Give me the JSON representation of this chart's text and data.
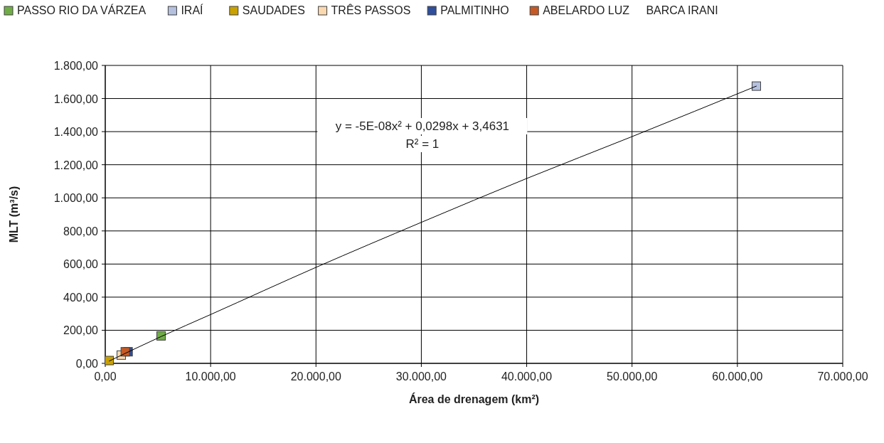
{
  "chart_data": {
    "type": "scatter",
    "xlabel": "Área de drenagem (km²)",
    "ylabel": "MLT (m³/s)",
    "xlim": [
      0,
      70000
    ],
    "ylim": [
      0,
      1800
    ],
    "xticks": [
      {
        "value": 0,
        "label": "0,00"
      },
      {
        "value": 10000,
        "label": "10.000,00"
      },
      {
        "value": 20000,
        "label": "20.000,00"
      },
      {
        "value": 30000,
        "label": "30.000,00"
      },
      {
        "value": 40000,
        "label": "40.000,00"
      },
      {
        "value": 50000,
        "label": "50.000,00"
      },
      {
        "value": 60000,
        "label": "60.000,00"
      },
      {
        "value": 70000,
        "label": "70.000,00"
      }
    ],
    "yticks": [
      {
        "value": 0,
        "label": "0,00"
      },
      {
        "value": 200,
        "label": "200,00"
      },
      {
        "value": 400,
        "label": "400,00"
      },
      {
        "value": 600,
        "label": "600,00"
      },
      {
        "value": 800,
        "label": "800,00"
      },
      {
        "value": 1000,
        "label": "1.000,00"
      },
      {
        "value": 1200,
        "label": "1.200,00"
      },
      {
        "value": 1400,
        "label": "1.400,00"
      },
      {
        "value": 1600,
        "label": "1.600,00"
      },
      {
        "value": 1800,
        "label": "1.800,00"
      }
    ],
    "grid": true,
    "legend": "top",
    "marker": "square",
    "series": [
      {
        "type": "line",
        "color": "#000000",
        "marker": "none",
        "x": [
          376,
          5300,
          10000,
          20000,
          30000,
          40000,
          50000,
          61800
        ],
        "values": [
          14,
          162,
          295,
          580,
          852,
          1117,
          1370,
          1675
        ]
      },
      {
        "name": "PASSO RIO DA VÁRZEA",
        "color": "#70ad47",
        "x": [
          5300
        ],
        "values": [
          166
        ]
      },
      {
        "name": "IRAÍ",
        "color": "#b4c0de",
        "x": [
          61800
        ],
        "values": [
          1675
        ]
      },
      {
        "name": "SAUDADES",
        "color": "#c9a100",
        "x": [
          376
        ],
        "values": [
          17
        ]
      },
      {
        "name": "TRÊS PASSOS",
        "color": "#fbd9b0",
        "x": [
          1520
        ],
        "values": [
          50
        ]
      },
      {
        "name": "PALMITINHO",
        "color": "#2f4f9a",
        "x": [
          2170
        ],
        "values": [
          70
        ]
      },
      {
        "name": "ABELARDO LUZ",
        "color": "#c55a24",
        "x": [
          1900
        ],
        "values": [
          70
        ]
      },
      {
        "name": "BARCA IRANI",
        "color": null
      }
    ],
    "annotations": [
      "y = -5E-08x² + 0,0298x + 3,4631",
      "R² = 1"
    ]
  }
}
